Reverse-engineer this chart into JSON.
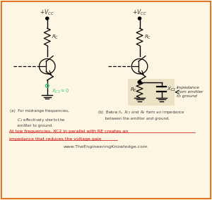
{
  "bg_color": "#fdf6e3",
  "border_color": "#e07020",
  "vcc_label_left": "$+V_{CC}$",
  "vcc_label_right": "$+V_{CC}$",
  "rc_label": "$R_C$",
  "xc2_green_label": "$X_{C2}\\approx 0$",
  "caption_a_line1": "(a)  For midrange frequencies,",
  "caption_a_line2": "      $C_2$ effectively shorts the",
  "caption_a_line3": "      emitter to ground.",
  "caption_b_line1": "(b)  Below $f_s$, $X_{C2}$ and $R_E$ form an impedance",
  "caption_b_line2": "      between the emitter and ground.",
  "red_text_line1": "At low frequencies, XC2 in parallel with RE creates an",
  "red_text_line2": "impedance that reduces the voltage gain",
  "website": "www.TheEngineeringKnowledge.com",
  "imp_label1": "Impedance",
  "imp_label2": "from emitter",
  "imp_label3": "to ground",
  "re_label": "$R_E$",
  "xc2b_label": "$X_{C2}$",
  "xc2_color": "#2ecc71",
  "red_color": "#cc0000",
  "impedance_box_color": "#e8dfc0",
  "text_color": "#333333",
  "caption_color": "#444444",
  "black": "#000000"
}
